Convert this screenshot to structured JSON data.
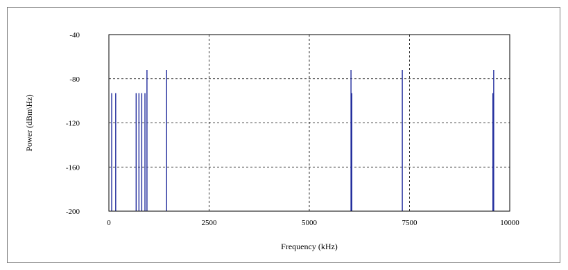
{
  "chart_data": {
    "type": "bar",
    "title": "",
    "xlabel": "Frequency (kHz)",
    "ylabel": "Power (dBm\\Hz)",
    "xlim": [
      0,
      10000
    ],
    "ylim": [
      -200,
      -40
    ],
    "x_ticks": [
      "0",
      "2500",
      "5000",
      "7500",
      "10000"
    ],
    "y_ticks": [
      "-40",
      "-80",
      "-120",
      "-160",
      "-200"
    ],
    "grid": true,
    "grid_style": "dashed",
    "baseline": -200,
    "series": [
      {
        "color": "#1f2a9c",
        "points": [
          {
            "x": 70,
            "y": -93
          },
          {
            "x": 170,
            "y": -93
          },
          {
            "x": 680,
            "y": -93
          },
          {
            "x": 750,
            "y": -93
          },
          {
            "x": 820,
            "y": -93
          },
          {
            "x": 900,
            "y": -93
          },
          {
            "x": 950,
            "y": -72
          },
          {
            "x": 1440,
            "y": -72
          },
          {
            "x": 6040,
            "y": -72
          },
          {
            "x": 6060,
            "y": -93
          },
          {
            "x": 7320,
            "y": -72
          },
          {
            "x": 9580,
            "y": -93
          },
          {
            "x": 9600,
            "y": -72
          }
        ]
      }
    ]
  }
}
